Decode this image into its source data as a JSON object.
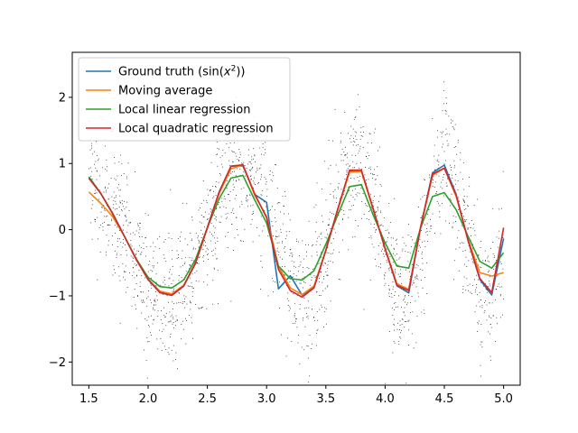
{
  "chart_data": {
    "type": "line",
    "title": "",
    "xlabel": "",
    "ylabel": "",
    "xlim": [
      1.36,
      5.14
    ],
    "ylim": [
      -2.35,
      2.68
    ],
    "xticks": [
      1.5,
      2.0,
      2.5,
      3.0,
      3.5,
      4.0,
      4.5,
      5.0
    ],
    "xtick_labels": [
      "1.5",
      "2.0",
      "2.5",
      "3.0",
      "3.5",
      "4.0",
      "4.5",
      "5.0"
    ],
    "yticks": [
      -2,
      -1,
      0,
      1,
      2
    ],
    "ytick_labels": [
      "−2",
      "−1",
      "0",
      "1",
      "2"
    ],
    "grid": false,
    "legend_position": "top-left",
    "scatter": {
      "name": "",
      "color": "#000000",
      "n_points": 2000,
      "noise_sd": 0.5,
      "x_range": [
        1.5,
        5.0
      ],
      "description": "noisy samples of sin(x^2)"
    },
    "series": [
      {
        "name_prefix": "Ground truth (sin(",
        "name_math": "x",
        "name_sup": "2",
        "name_suffix": "))",
        "color": "#1f77b4",
        "x": [
          1.5,
          1.6,
          1.7,
          1.8,
          1.9,
          2.0,
          2.1,
          2.2,
          2.3,
          2.4,
          2.5,
          2.6,
          2.7,
          2.8,
          2.9,
          3.0,
          3.1,
          3.2,
          3.3,
          3.4,
          3.5,
          3.6,
          3.7,
          3.8,
          3.9,
          4.0,
          4.1,
          4.2,
          4.3,
          4.4,
          4.5,
          4.6,
          4.7,
          4.8,
          4.9,
          5.0
        ],
        "y": [
          0.778,
          0.549,
          0.249,
          -0.1,
          -0.451,
          -0.757,
          -0.952,
          -0.994,
          -0.854,
          -0.513,
          0.033,
          0.572,
          0.959,
          0.965,
          0.532,
          0.412,
          -0.894,
          -0.696,
          -0.99,
          -0.862,
          -0.313,
          0.305,
          0.884,
          0.89,
          0.312,
          -0.288,
          -0.849,
          -0.955,
          0.042,
          0.861,
          0.976,
          0.531,
          -0.166,
          -0.756,
          -0.987,
          -0.132
        ]
      },
      {
        "name": "Moving average",
        "color": "#ff7f0e",
        "x": [
          1.5,
          1.6,
          1.7,
          1.8,
          1.9,
          2.0,
          2.1,
          2.2,
          2.3,
          2.4,
          2.5,
          2.6,
          2.7,
          2.8,
          2.9,
          3.0,
          3.1,
          3.2,
          3.3,
          3.4,
          3.5,
          3.6,
          3.7,
          3.8,
          3.9,
          4.0,
          4.1,
          4.2,
          4.3,
          4.4,
          4.5,
          4.6,
          4.7,
          4.8,
          4.9,
          5.0
        ],
        "y": [
          0.57,
          0.4,
          0.2,
          -0.1,
          -0.45,
          -0.75,
          -0.93,
          -0.97,
          -0.84,
          -0.5,
          0.02,
          0.55,
          0.92,
          0.98,
          0.52,
          0.2,
          -0.55,
          -0.88,
          -0.98,
          -0.85,
          -0.31,
          0.3,
          0.87,
          0.88,
          0.3,
          -0.28,
          -0.82,
          -0.9,
          0.04,
          0.82,
          0.93,
          0.5,
          -0.15,
          -0.65,
          -0.7,
          -0.65
        ]
      },
      {
        "name": "Local linear regression",
        "color": "#2ca02c",
        "x": [
          1.5,
          1.6,
          1.7,
          1.8,
          1.9,
          2.0,
          2.1,
          2.2,
          2.3,
          2.4,
          2.5,
          2.6,
          2.7,
          2.8,
          2.9,
          3.0,
          3.1,
          3.2,
          3.3,
          3.4,
          3.5,
          3.6,
          3.7,
          3.8,
          3.9,
          4.0,
          4.1,
          4.2,
          4.3,
          4.4,
          4.5,
          4.6,
          4.7,
          4.8,
          4.9,
          5.0
        ],
        "y": [
          0.8,
          0.55,
          0.24,
          -0.1,
          -0.44,
          -0.72,
          -0.86,
          -0.88,
          -0.76,
          -0.45,
          0.03,
          0.47,
          0.78,
          0.82,
          0.45,
          0.1,
          -0.55,
          -0.74,
          -0.76,
          -0.62,
          -0.22,
          0.22,
          0.65,
          0.68,
          0.22,
          -0.2,
          -0.55,
          -0.58,
          0.03,
          0.5,
          0.56,
          0.3,
          -0.1,
          -0.48,
          -0.58,
          -0.35
        ]
      },
      {
        "name": "Local quadratic regression",
        "color": "#d62728",
        "x": [
          1.5,
          1.6,
          1.7,
          1.8,
          1.9,
          2.0,
          2.1,
          2.2,
          2.3,
          2.4,
          2.5,
          2.6,
          2.7,
          2.8,
          2.9,
          3.0,
          3.1,
          3.2,
          3.3,
          3.4,
          3.5,
          3.6,
          3.7,
          3.8,
          3.9,
          4.0,
          4.1,
          4.2,
          4.3,
          4.4,
          4.5,
          4.6,
          4.7,
          4.8,
          4.9,
          5.0
        ],
        "y": [
          0.78,
          0.55,
          0.25,
          -0.1,
          -0.45,
          -0.75,
          -0.95,
          -0.99,
          -0.85,
          -0.5,
          0.03,
          0.57,
          0.96,
          0.98,
          0.54,
          0.18,
          -0.6,
          -0.92,
          -1.02,
          -0.88,
          -0.31,
          0.31,
          0.9,
          0.9,
          0.31,
          -0.29,
          -0.84,
          -0.92,
          0.04,
          0.84,
          0.93,
          0.52,
          -0.16,
          -0.74,
          -0.95,
          0.03
        ]
      }
    ]
  }
}
